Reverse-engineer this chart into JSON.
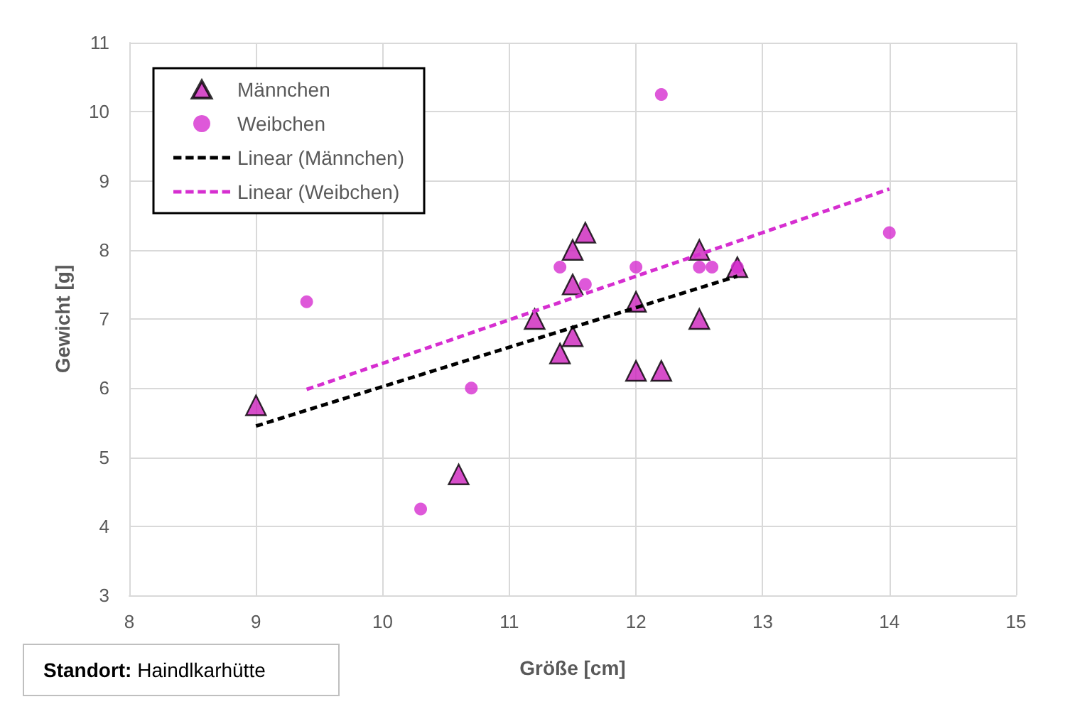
{
  "chart_data": {
    "type": "scatter",
    "xlabel": "Größe [cm]",
    "ylabel": "Gewicht [g]",
    "xlim": [
      8,
      15
    ],
    "xticks": [
      8,
      9,
      10,
      11,
      12,
      13,
      14,
      15
    ],
    "ylim": [
      3,
      11
    ],
    "yticks": [
      3,
      4,
      5,
      6,
      7,
      8,
      9,
      10,
      11
    ],
    "grid": true,
    "legend": "top left",
    "annotations": [
      "Standort: Haindlkarhütte"
    ],
    "series": [
      {
        "name": "Männchen",
        "marker": "triangle",
        "color": "#cc22bb",
        "x": [
          9,
          10.6,
          11.2,
          11.4,
          11.5,
          11.5,
          11.5,
          11.6,
          12,
          12,
          12.2,
          12.5,
          12.5,
          12.8
        ],
        "values": [
          5.75,
          4.75,
          7,
          6.5,
          6.75,
          7.5,
          8,
          8.25,
          7.25,
          6.25,
          6.25,
          8,
          7,
          7.75
        ]
      },
      {
        "name": "Weibchen",
        "marker": "circle",
        "color": "#d62ed0",
        "x": [
          9.4,
          10.3,
          10.7,
          11.4,
          11.6,
          12,
          12.2,
          12.5,
          12.6,
          12.8,
          14
        ],
        "values": [
          7.25,
          4.25,
          6,
          7.75,
          7.5,
          7.75,
          10.25,
          7.75,
          7.75,
          7.75,
          8.25
        ]
      },
      {
        "name": "Linear (Männchen)",
        "type": "line",
        "line_style": "dashed",
        "color": "#000000",
        "x": [
          9,
          12.8
        ],
        "values": [
          5.45,
          7.62
        ]
      },
      {
        "name": "Linear (Weibchen)",
        "type": "line",
        "line_style": "dashed",
        "color": "#d62ed0",
        "x": [
          9.4,
          14
        ],
        "values": [
          5.98,
          8.88
        ]
      }
    ]
  }
}
